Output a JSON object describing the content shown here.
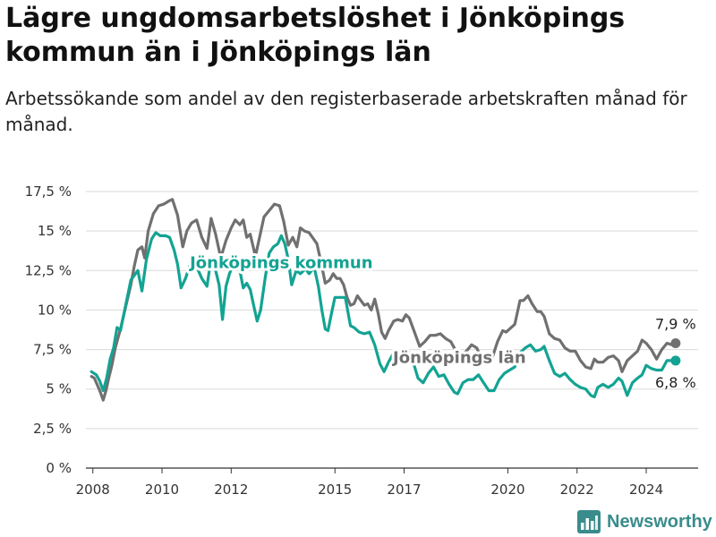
{
  "header": {
    "title": "Lägre ungdomsarbetslöshet i Jönköpings kommun än i Jönköpings län",
    "subtitle": "Arbetssökande som andel av den registerbaserade arbetskraften månad för månad."
  },
  "brand": {
    "name": "Newsworthy",
    "icon": "bar-chart-icon",
    "color": "#3a8c8c"
  },
  "chart_data": {
    "type": "line",
    "title": "Lägre ungdomsarbetslöshet i Jönköpings kommun än i Jönköpings län",
    "subtitle": "Arbetssökande som andel av den registerbaserade arbetskraften månad för månad.",
    "xlabel": "",
    "ylabel": "",
    "xlim": [
      2007.8,
      2025.5
    ],
    "ylim": [
      0,
      17.5
    ],
    "grid": true,
    "x_ticks": [
      2008,
      2010,
      2012,
      2015,
      2017,
      2020,
      2022,
      2024
    ],
    "x_tick_labels": [
      "2008",
      "2010",
      "2012",
      "2015",
      "2017",
      "2020",
      "2022",
      "2024"
    ],
    "y_ticks": [
      0,
      2.5,
      5,
      7.5,
      10,
      12.5,
      15,
      17.5
    ],
    "y_tick_labels": [
      "0 %",
      "2,5 %",
      "5 %",
      "7,5 %",
      "10 %",
      "12,5 %",
      "15 %",
      "17,5 %"
    ],
    "series": [
      {
        "name": "Jönköpings län",
        "color": "#707070",
        "end_label": "7,9 %",
        "points": [
          [
            2007.96,
            5.8
          ],
          [
            2008.04,
            5.7
          ],
          [
            2008.12,
            5.3
          ],
          [
            2008.2,
            4.9
          ],
          [
            2008.3,
            4.3
          ],
          [
            2008.38,
            4.9
          ],
          [
            2008.45,
            5.6
          ],
          [
            2008.55,
            6.5
          ],
          [
            2008.65,
            7.6
          ],
          [
            2008.8,
            8.8
          ],
          [
            2008.95,
            10.2
          ],
          [
            2009.1,
            11.6
          ],
          [
            2009.2,
            12.8
          ],
          [
            2009.3,
            13.8
          ],
          [
            2009.42,
            14.0
          ],
          [
            2009.5,
            13.3
          ],
          [
            2009.6,
            15.0
          ],
          [
            2009.75,
            16.1
          ],
          [
            2009.9,
            16.6
          ],
          [
            2010.05,
            16.7
          ],
          [
            2010.2,
            16.9
          ],
          [
            2010.3,
            17.0
          ],
          [
            2010.45,
            16.0
          ],
          [
            2010.6,
            14.0
          ],
          [
            2010.72,
            15.0
          ],
          [
            2010.85,
            15.5
          ],
          [
            2011.0,
            15.7
          ],
          [
            2011.15,
            14.6
          ],
          [
            2011.3,
            13.9
          ],
          [
            2011.42,
            15.8
          ],
          [
            2011.55,
            14.8
          ],
          [
            2011.7,
            13.3
          ],
          [
            2011.85,
            14.4
          ],
          [
            2012.0,
            15.2
          ],
          [
            2012.12,
            15.7
          ],
          [
            2012.25,
            15.4
          ],
          [
            2012.35,
            15.7
          ],
          [
            2012.45,
            14.6
          ],
          [
            2012.55,
            14.8
          ],
          [
            2012.7,
            13.4
          ],
          [
            2012.82,
            14.6
          ],
          [
            2012.95,
            15.9
          ],
          [
            2013.1,
            16.3
          ],
          [
            2013.25,
            16.7
          ],
          [
            2013.4,
            16.6
          ],
          [
            2013.52,
            15.6
          ],
          [
            2013.65,
            14.1
          ],
          [
            2013.78,
            14.6
          ],
          [
            2013.9,
            14.0
          ],
          [
            2014.0,
            15.2
          ],
          [
            2014.12,
            15.0
          ],
          [
            2014.25,
            14.9
          ],
          [
            2014.35,
            14.6
          ],
          [
            2014.48,
            14.2
          ],
          [
            2014.6,
            13.0
          ],
          [
            2014.72,
            11.7
          ],
          [
            2014.85,
            11.9
          ],
          [
            2014.95,
            12.3
          ],
          [
            2015.05,
            12.0
          ],
          [
            2015.15,
            12.0
          ],
          [
            2015.25,
            11.6
          ],
          [
            2015.35,
            10.8
          ],
          [
            2015.45,
            10.3
          ],
          [
            2015.55,
            10.4
          ],
          [
            2015.65,
            10.9
          ],
          [
            2015.75,
            10.6
          ],
          [
            2015.85,
            10.3
          ],
          [
            2015.95,
            10.4
          ],
          [
            2016.05,
            10.0
          ],
          [
            2016.15,
            10.7
          ],
          [
            2016.25,
            9.8
          ],
          [
            2016.35,
            8.6
          ],
          [
            2016.45,
            8.2
          ],
          [
            2016.55,
            8.7
          ],
          [
            2016.7,
            9.3
          ],
          [
            2016.82,
            9.4
          ],
          [
            2016.95,
            9.3
          ],
          [
            2017.05,
            9.7
          ],
          [
            2017.15,
            9.5
          ],
          [
            2017.3,
            8.6
          ],
          [
            2017.45,
            7.7
          ],
          [
            2017.6,
            8.0
          ],
          [
            2017.75,
            8.4
          ],
          [
            2017.9,
            8.4
          ],
          [
            2018.05,
            8.5
          ],
          [
            2018.2,
            8.2
          ],
          [
            2018.35,
            8.0
          ],
          [
            2018.5,
            7.4
          ],
          [
            2018.65,
            7.1
          ],
          [
            2018.8,
            7.4
          ],
          [
            2018.95,
            7.8
          ],
          [
            2019.1,
            7.6
          ],
          [
            2019.25,
            6.9
          ],
          [
            2019.4,
            6.6
          ],
          [
            2019.55,
            7.0
          ],
          [
            2019.7,
            8.0
          ],
          [
            2019.85,
            8.7
          ],
          [
            2019.95,
            8.6
          ],
          [
            2020.05,
            8.8
          ],
          [
            2020.2,
            9.1
          ],
          [
            2020.35,
            10.6
          ],
          [
            2020.45,
            10.6
          ],
          [
            2020.58,
            10.9
          ],
          [
            2020.7,
            10.4
          ],
          [
            2020.85,
            9.9
          ],
          [
            2020.95,
            9.9
          ],
          [
            2021.05,
            9.6
          ],
          [
            2021.2,
            8.5
          ],
          [
            2021.35,
            8.2
          ],
          [
            2021.5,
            8.1
          ],
          [
            2021.65,
            7.6
          ],
          [
            2021.8,
            7.4
          ],
          [
            2021.95,
            7.4
          ],
          [
            2022.1,
            6.8
          ],
          [
            2022.25,
            6.4
          ],
          [
            2022.4,
            6.3
          ],
          [
            2022.5,
            6.9
          ],
          [
            2022.6,
            6.7
          ],
          [
            2022.75,
            6.7
          ],
          [
            2022.9,
            7.0
          ],
          [
            2023.05,
            7.1
          ],
          [
            2023.2,
            6.8
          ],
          [
            2023.3,
            6.1
          ],
          [
            2023.45,
            6.8
          ],
          [
            2023.6,
            7.1
          ],
          [
            2023.75,
            7.4
          ],
          [
            2023.88,
            8.1
          ],
          [
            2024.0,
            7.9
          ],
          [
            2024.15,
            7.5
          ],
          [
            2024.3,
            6.9
          ],
          [
            2024.45,
            7.5
          ],
          [
            2024.6,
            7.9
          ],
          [
            2024.75,
            7.8
          ],
          [
            2024.85,
            7.9
          ]
        ]
      },
      {
        "name": "Jönköpings kommun",
        "color": "#13a393",
        "end_label": "6,8 %",
        "points": [
          [
            2007.96,
            6.1
          ],
          [
            2008.1,
            5.9
          ],
          [
            2008.2,
            5.5
          ],
          [
            2008.3,
            4.9
          ],
          [
            2008.4,
            5.7
          ],
          [
            2008.5,
            6.9
          ],
          [
            2008.6,
            7.6
          ],
          [
            2008.7,
            8.9
          ],
          [
            2008.8,
            8.7
          ],
          [
            2008.95,
            10.3
          ],
          [
            2009.1,
            11.9
          ],
          [
            2009.2,
            12.2
          ],
          [
            2009.3,
            12.5
          ],
          [
            2009.42,
            11.2
          ],
          [
            2009.55,
            13.2
          ],
          [
            2009.7,
            14.5
          ],
          [
            2009.82,
            14.9
          ],
          [
            2009.95,
            14.7
          ],
          [
            2010.1,
            14.7
          ],
          [
            2010.22,
            14.6
          ],
          [
            2010.35,
            13.8
          ],
          [
            2010.45,
            12.9
          ],
          [
            2010.55,
            11.4
          ],
          [
            2010.68,
            12.0
          ],
          [
            2010.8,
            12.8
          ],
          [
            2010.95,
            13.1
          ],
          [
            2011.05,
            12.5
          ],
          [
            2011.15,
            12.0
          ],
          [
            2011.3,
            11.5
          ],
          [
            2011.42,
            13.3
          ],
          [
            2011.55,
            12.5
          ],
          [
            2011.65,
            11.6
          ],
          [
            2011.75,
            9.4
          ],
          [
            2011.85,
            11.5
          ],
          [
            2011.95,
            12.3
          ],
          [
            2012.05,
            12.8
          ],
          [
            2012.15,
            12.9
          ],
          [
            2012.25,
            12.5
          ],
          [
            2012.35,
            11.4
          ],
          [
            2012.45,
            11.7
          ],
          [
            2012.55,
            11.3
          ],
          [
            2012.65,
            10.3
          ],
          [
            2012.75,
            9.3
          ],
          [
            2012.85,
            10.0
          ],
          [
            2012.98,
            12.0
          ],
          [
            2013.1,
            13.6
          ],
          [
            2013.22,
            14.0
          ],
          [
            2013.35,
            14.2
          ],
          [
            2013.45,
            14.7
          ],
          [
            2013.55,
            14.2
          ],
          [
            2013.65,
            13.2
          ],
          [
            2013.75,
            11.6
          ],
          [
            2013.88,
            12.5
          ],
          [
            2014.0,
            12.3
          ],
          [
            2014.15,
            12.6
          ],
          [
            2014.25,
            12.3
          ],
          [
            2014.4,
            12.7
          ],
          [
            2014.52,
            11.5
          ],
          [
            2014.62,
            10.0
          ],
          [
            2014.72,
            8.8
          ],
          [
            2014.8,
            8.7
          ],
          [
            2014.9,
            9.8
          ],
          [
            2015.0,
            10.8
          ],
          [
            2015.15,
            10.8
          ],
          [
            2015.3,
            10.8
          ],
          [
            2015.45,
            9.0
          ],
          [
            2015.55,
            8.9
          ],
          [
            2015.7,
            8.6
          ],
          [
            2015.85,
            8.5
          ],
          [
            2016.0,
            8.6
          ],
          [
            2016.15,
            7.8
          ],
          [
            2016.3,
            6.6
          ],
          [
            2016.42,
            6.1
          ],
          [
            2016.55,
            6.7
          ],
          [
            2016.7,
            7.3
          ],
          [
            2016.85,
            6.9
          ],
          [
            2016.98,
            7.5
          ],
          [
            2017.1,
            7.5
          ],
          [
            2017.25,
            6.8
          ],
          [
            2017.4,
            5.7
          ],
          [
            2017.55,
            5.4
          ],
          [
            2017.7,
            6.0
          ],
          [
            2017.85,
            6.4
          ],
          [
            2018.0,
            5.8
          ],
          [
            2018.15,
            5.9
          ],
          [
            2018.3,
            5.3
          ],
          [
            2018.45,
            4.8
          ],
          [
            2018.55,
            4.7
          ],
          [
            2018.7,
            5.4
          ],
          [
            2018.85,
            5.6
          ],
          [
            2019.0,
            5.6
          ],
          [
            2019.15,
            5.9
          ],
          [
            2019.3,
            5.4
          ],
          [
            2019.45,
            4.9
          ],
          [
            2019.6,
            4.9
          ],
          [
            2019.75,
            5.6
          ],
          [
            2019.9,
            6.0
          ],
          [
            2020.05,
            6.2
          ],
          [
            2020.2,
            6.4
          ],
          [
            2020.35,
            7.3
          ],
          [
            2020.5,
            7.6
          ],
          [
            2020.65,
            7.8
          ],
          [
            2020.8,
            7.4
          ],
          [
            2020.95,
            7.5
          ],
          [
            2021.05,
            7.7
          ],
          [
            2021.2,
            6.8
          ],
          [
            2021.35,
            6.0
          ],
          [
            2021.5,
            5.8
          ],
          [
            2021.65,
            6.0
          ],
          [
            2021.8,
            5.6
          ],
          [
            2021.95,
            5.3
          ],
          [
            2022.1,
            5.1
          ],
          [
            2022.25,
            5.0
          ],
          [
            2022.4,
            4.6
          ],
          [
            2022.5,
            4.5
          ],
          [
            2022.6,
            5.1
          ],
          [
            2022.75,
            5.3
          ],
          [
            2022.9,
            5.1
          ],
          [
            2023.05,
            5.3
          ],
          [
            2023.2,
            5.7
          ],
          [
            2023.3,
            5.5
          ],
          [
            2023.45,
            4.6
          ],
          [
            2023.6,
            5.4
          ],
          [
            2023.75,
            5.7
          ],
          [
            2023.88,
            5.9
          ],
          [
            2024.0,
            6.5
          ],
          [
            2024.15,
            6.3
          ],
          [
            2024.3,
            6.2
          ],
          [
            2024.45,
            6.2
          ],
          [
            2024.6,
            6.8
          ],
          [
            2024.75,
            6.8
          ],
          [
            2024.85,
            6.8
          ]
        ]
      }
    ],
    "annotations": [
      {
        "text": "Jönköpings kommun",
        "series": "Jönköpings kommun",
        "x": 2013.45,
        "y": 13.0
      },
      {
        "text": "Jönköpings län",
        "series": "Jönköpings län",
        "x": 2018.6,
        "y": 7.0
      }
    ]
  }
}
